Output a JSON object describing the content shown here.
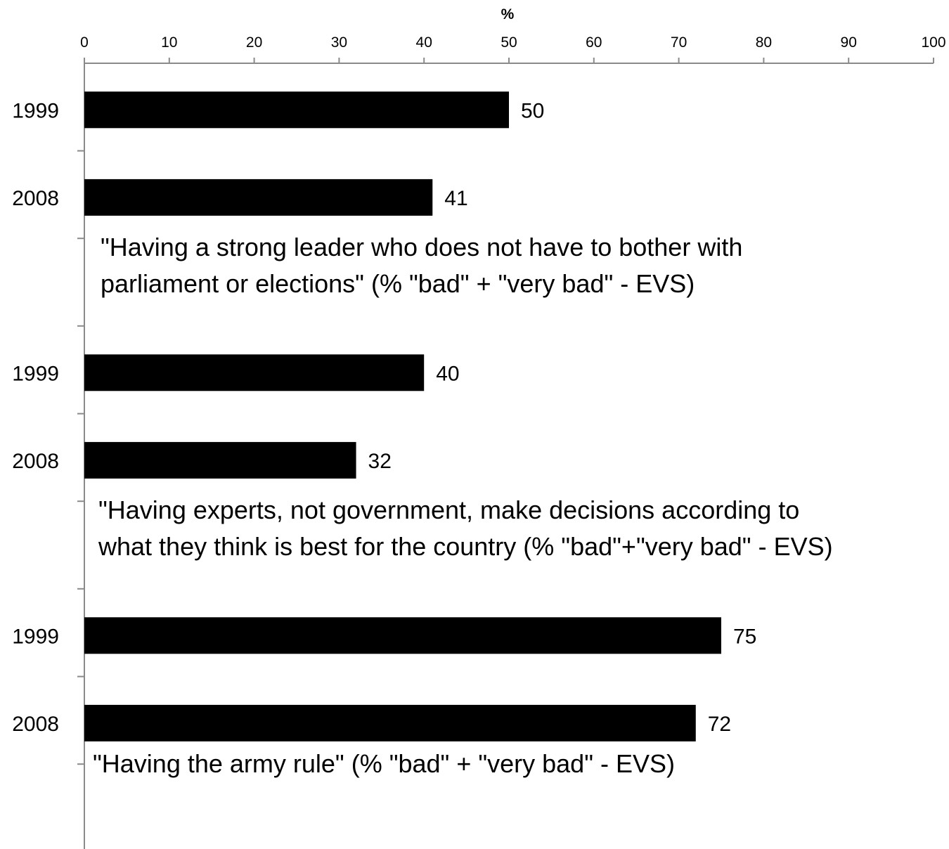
{
  "chart_data": {
    "type": "bar",
    "orientation": "horizontal",
    "x_unit_label": "%",
    "xlim": [
      0,
      100
    ],
    "x_ticks": [
      0,
      10,
      20,
      30,
      40,
      50,
      60,
      70,
      80,
      90,
      100
    ],
    "x_axis_position": "top",
    "bar_color": "#000000",
    "categories": [
      "1999",
      "2008",
      "1999",
      "2008",
      "1999",
      "2008"
    ],
    "values": [
      50,
      41,
      40,
      32,
      75,
      72
    ],
    "data_labels": [
      "50",
      "41",
      "40",
      "32",
      "75",
      "72"
    ],
    "groups": [
      {
        "label_lines": [
          "\"Having a strong leader who does not have to bother with",
          "parliament or elections\" (% \"bad\" + \"very bad\" - EVS)"
        ],
        "years": [
          "1999",
          "2008"
        ],
        "values": [
          50,
          41
        ]
      },
      {
        "label_lines": [
          "\"Having experts, not government, make decisions according to",
          "what they think is best for the country (% \"bad\"+\"very bad\" - EVS)"
        ],
        "years": [
          "1999",
          "2008"
        ],
        "values": [
          40,
          32
        ]
      },
      {
        "label_lines": [
          "\"Having the army rule\" (% \"bad\" + \"very bad\" - EVS)"
        ],
        "years": [
          "1999",
          "2008"
        ],
        "values": [
          75,
          72
        ]
      }
    ],
    "grid": false,
    "legend": "none"
  }
}
